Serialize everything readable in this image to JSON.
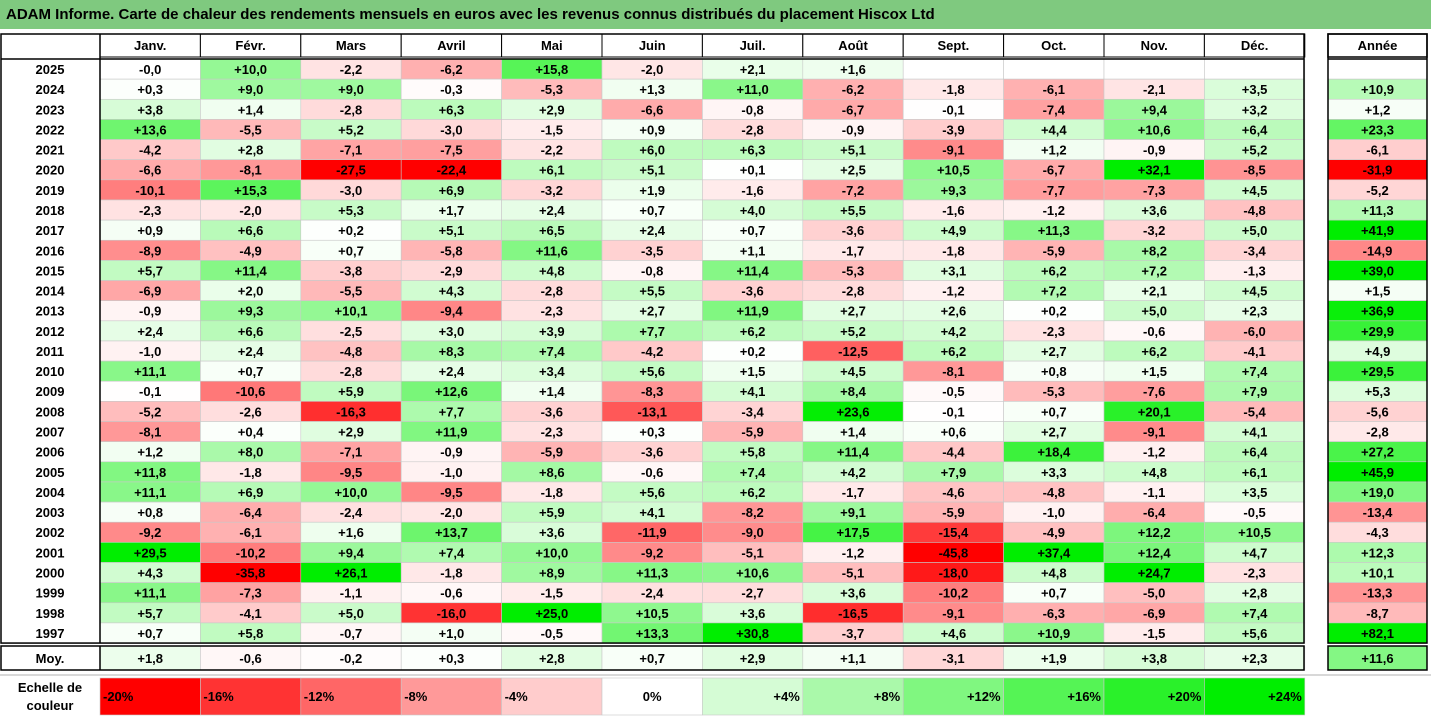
{
  "title": "ADAM Informe. Carte de chaleur des rendements mensuels en euros avec les revenus connus distribués du placement Hiscox Ltd",
  "legend": {
    "label_line1": "Echelle de",
    "label_line2": "couleur",
    "items": [
      "-20%",
      "-16%",
      "-12%",
      "-8%",
      "-4%",
      "0%",
      "+4%",
      "+8%",
      "+12%",
      "+16%",
      "+20%",
      "+24%"
    ]
  },
  "colors": {
    "title_bg": "#7fc97f",
    "positive_max": "#00ee00",
    "negative_max": "#ff0000",
    "neutral": "#ffffff"
  },
  "chart_data": {
    "type": "heatmap",
    "months": [
      "Janv.",
      "Févr.",
      "Mars",
      "Avril",
      "Mai",
      "Juin",
      "Juil.",
      "Août",
      "Sept.",
      "Oct.",
      "Nov.",
      "Déc."
    ],
    "annual_label": "Année",
    "average_label": "Moy.",
    "color_scale_range": [
      -20,
      24
    ],
    "rows": [
      {
        "year": "2025",
        "values": [
          "-0,0",
          "+10,0",
          "-2,2",
          "-6,2",
          "+15,8",
          "-2,0",
          "+2,1",
          "+1,6",
          "",
          "",
          "",
          ""
        ],
        "annual": ""
      },
      {
        "year": "2024",
        "values": [
          "+0,3",
          "+9,0",
          "+9,0",
          "-0,3",
          "-5,3",
          "+1,3",
          "+11,0",
          "-6,2",
          "-1,8",
          "-6,1",
          "-2,1",
          "+3,5"
        ],
        "annual": "+10,9"
      },
      {
        "year": "2023",
        "values": [
          "+3,8",
          "+1,4",
          "-2,8",
          "+6,3",
          "+2,9",
          "-6,6",
          "-0,8",
          "-6,7",
          "-0,1",
          "-7,4",
          "+9,4",
          "+3,2"
        ],
        "annual": "+1,2"
      },
      {
        "year": "2022",
        "values": [
          "+13,6",
          "-5,5",
          "+5,2",
          "-3,0",
          "-1,5",
          "+0,9",
          "-2,8",
          "-0,9",
          "-3,9",
          "+4,4",
          "+10,6",
          "+6,4"
        ],
        "annual": "+23,3"
      },
      {
        "year": "2021",
        "values": [
          "-4,2",
          "+2,8",
          "-7,1",
          "-7,5",
          "-2,2",
          "+6,0",
          "+6,3",
          "+5,1",
          "-9,1",
          "+1,2",
          "-0,9",
          "+5,2"
        ],
        "annual": "-6,1"
      },
      {
        "year": "2020",
        "values": [
          "-6,6",
          "-8,1",
          "-27,5",
          "-22,4",
          "+6,1",
          "+5,1",
          "+0,1",
          "+2,5",
          "+10,5",
          "-6,7",
          "+32,1",
          "-8,5"
        ],
        "annual": "-31,9"
      },
      {
        "year": "2019",
        "values": [
          "-10,1",
          "+15,3",
          "-3,0",
          "+6,9",
          "-3,2",
          "+1,9",
          "-1,6",
          "-7,2",
          "+9,3",
          "-7,7",
          "-7,3",
          "+4,5"
        ],
        "annual": "-5,2"
      },
      {
        "year": "2018",
        "values": [
          "-2,3",
          "-2,0",
          "+5,3",
          "+1,7",
          "+2,4",
          "+0,7",
          "+4,0",
          "+5,5",
          "-1,6",
          "-1,2",
          "+3,6",
          "-4,8"
        ],
        "annual": "+11,3"
      },
      {
        "year": "2017",
        "values": [
          "+0,9",
          "+6,6",
          "+0,2",
          "+5,1",
          "+6,5",
          "+2,4",
          "+0,7",
          "-3,6",
          "+4,9",
          "+11,3",
          "-3,2",
          "+5,0"
        ],
        "annual": "+41,9"
      },
      {
        "year": "2016",
        "values": [
          "-8,9",
          "-4,9",
          "+0,7",
          "-5,8",
          "+11,6",
          "-3,5",
          "+1,1",
          "-1,7",
          "-1,8",
          "-5,9",
          "+8,2",
          "-3,4"
        ],
        "annual": "-14,9"
      },
      {
        "year": "2015",
        "values": [
          "+5,7",
          "+11,4",
          "-3,8",
          "-2,9",
          "+4,8",
          "-0,8",
          "+11,4",
          "-5,3",
          "+3,1",
          "+6,2",
          "+7,2",
          "-1,3"
        ],
        "annual": "+39,0"
      },
      {
        "year": "2014",
        "values": [
          "-6,9",
          "+2,0",
          "-5,5",
          "+4,3",
          "-2,8",
          "+5,5",
          "-3,6",
          "-2,8",
          "-1,2",
          "+7,2",
          "+2,1",
          "+4,5"
        ],
        "annual": "+1,5"
      },
      {
        "year": "2013",
        "values": [
          "-0,9",
          "+9,3",
          "+10,1",
          "-9,4",
          "-2,3",
          "+2,7",
          "+11,9",
          "+2,7",
          "+2,6",
          "+0,2",
          "+5,0",
          "+2,3"
        ],
        "annual": "+36,9"
      },
      {
        "year": "2012",
        "values": [
          "+2,4",
          "+6,6",
          "-2,5",
          "+3,0",
          "+3,9",
          "+7,7",
          "+6,2",
          "+5,2",
          "+4,2",
          "-2,3",
          "-0,6",
          "-6,0"
        ],
        "annual": "+29,9"
      },
      {
        "year": "2011",
        "values": [
          "-1,0",
          "+2,4",
          "-4,8",
          "+8,3",
          "+7,4",
          "-4,2",
          "+0,2",
          "-12,5",
          "+6,2",
          "+2,7",
          "+6,2",
          "-4,1"
        ],
        "annual": "+4,9"
      },
      {
        "year": "2010",
        "values": [
          "+11,1",
          "+0,7",
          "-2,8",
          "+2,4",
          "+3,4",
          "+5,6",
          "+1,5",
          "+4,5",
          "-8,1",
          "+0,8",
          "+1,5",
          "+7,4"
        ],
        "annual": "+29,5"
      },
      {
        "year": "2009",
        "values": [
          "-0,1",
          "-10,6",
          "+5,9",
          "+12,6",
          "+1,4",
          "-8,3",
          "+4,1",
          "+8,4",
          "-0,5",
          "-5,3",
          "-7,6",
          "+7,9"
        ],
        "annual": "+5,3"
      },
      {
        "year": "2008",
        "values": [
          "-5,2",
          "-2,6",
          "-16,3",
          "+7,7",
          "-3,6",
          "-13,1",
          "-3,4",
          "+23,6",
          "-0,1",
          "+0,7",
          "+20,1",
          "-5,4"
        ],
        "annual": "-5,6"
      },
      {
        "year": "2007",
        "values": [
          "-8,1",
          "+0,4",
          "+2,9",
          "+11,9",
          "-2,3",
          "+0,3",
          "-5,9",
          "+1,4",
          "+0,6",
          "+2,7",
          "-9,1",
          "+4,1"
        ],
        "annual": "-2,8"
      },
      {
        "year": "2006",
        "values": [
          "+1,2",
          "+8,0",
          "-7,1",
          "-0,9",
          "-5,9",
          "-3,6",
          "+5,8",
          "+11,4",
          "-4,4",
          "+18,4",
          "-1,2",
          "+6,4"
        ],
        "annual": "+27,2"
      },
      {
        "year": "2005",
        "values": [
          "+11,8",
          "-1,8",
          "-9,5",
          "-1,0",
          "+8,6",
          "-0,6",
          "+7,4",
          "+4,2",
          "+7,9",
          "+3,3",
          "+4,8",
          "+6,1"
        ],
        "annual": "+45,9"
      },
      {
        "year": "2004",
        "values": [
          "+11,1",
          "+6,9",
          "+10,0",
          "-9,5",
          "-1,8",
          "+5,6",
          "+6,2",
          "-1,7",
          "-4,6",
          "-4,8",
          "-1,1",
          "+3,5"
        ],
        "annual": "+19,0"
      },
      {
        "year": "2003",
        "values": [
          "+0,8",
          "-6,4",
          "-2,4",
          "-2,0",
          "+5,9",
          "+4,1",
          "-8,2",
          "+9,1",
          "-5,9",
          "-1,0",
          "-6,4",
          "-0,5"
        ],
        "annual": "-13,4"
      },
      {
        "year": "2002",
        "values": [
          "-9,2",
          "-6,1",
          "+1,6",
          "+13,7",
          "+3,6",
          "-11,9",
          "-9,0",
          "+17,5",
          "-15,4",
          "-4,9",
          "+12,2",
          "+10,5"
        ],
        "annual": "-4,3"
      },
      {
        "year": "2001",
        "values": [
          "+29,5",
          "-10,2",
          "+9,4",
          "+7,4",
          "+10,0",
          "-9,2",
          "-5,1",
          "-1,2",
          "-45,8",
          "+37,4",
          "+12,4",
          "+4,7"
        ],
        "annual": "+12,3"
      },
      {
        "year": "2000",
        "values": [
          "+4,3",
          "-35,8",
          "+26,1",
          "-1,8",
          "+8,9",
          "+11,3",
          "+10,6",
          "-5,1",
          "-18,0",
          "+4,8",
          "+24,7",
          "-2,3"
        ],
        "annual": "+10,1"
      },
      {
        "year": "1999",
        "values": [
          "+11,1",
          "-7,3",
          "-1,1",
          "-0,6",
          "-1,5",
          "-2,4",
          "-2,7",
          "+3,6",
          "-10,2",
          "+0,7",
          "-5,0",
          "+2,8"
        ],
        "annual": "-13,3"
      },
      {
        "year": "1998",
        "values": [
          "+5,7",
          "-4,1",
          "+5,0",
          "-16,0",
          "+25,0",
          "+10,5",
          "+3,6",
          "-16,5",
          "-9,1",
          "-6,3",
          "-6,9",
          "+7,4"
        ],
        "annual": "-8,7"
      },
      {
        "year": "1997",
        "values": [
          "+0,7",
          "+5,8",
          "-0,7",
          "+1,0",
          "-0,5",
          "+13,3",
          "+30,8",
          "-3,7",
          "+4,6",
          "+10,9",
          "-1,5",
          "+5,6"
        ],
        "annual": "+82,1"
      }
    ],
    "averages": [
      "+1,8",
      "-0,6",
      "-0,2",
      "+0,3",
      "+2,8",
      "+0,7",
      "+2,9",
      "+1,1",
      "-3,1",
      "+1,9",
      "+3,8",
      "+2,3"
    ],
    "average_annual": "+11,6"
  }
}
